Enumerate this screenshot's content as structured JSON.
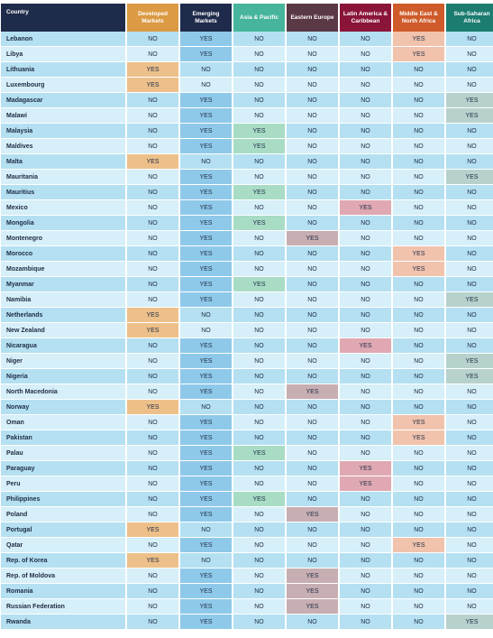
{
  "columns": [
    {
      "key": "country",
      "label": "Country",
      "color": "#1f2b4a"
    },
    {
      "key": "developed",
      "label": "Developed Markets",
      "color": "#db9a43",
      "highlight": "#edc08a"
    },
    {
      "key": "emerging",
      "label": "Emerging Markets",
      "color": "#1f2b4a",
      "highlight": "#8fc9ea"
    },
    {
      "key": "asia",
      "label": "Asia & Pacific",
      "color": "#46b59b",
      "highlight": "#a8dcc5"
    },
    {
      "key": "eastern",
      "label": "Eastern Europe",
      "color": "#5b3845",
      "highlight": "#c7aeb2"
    },
    {
      "key": "latam",
      "label": "Latin America & Caribbean",
      "color": "#8a1538",
      "highlight": "#dfa8b2"
    },
    {
      "key": "mena",
      "label": "Middle East & North Africa",
      "color": "#cf5b2a",
      "highlight": "#f1c3ac"
    },
    {
      "key": "ssa",
      "label": "Sub-Saharan Africa",
      "color": "#1b7c6f",
      "highlight": "#b7d2cc"
    }
  ],
  "rows": [
    {
      "country": "Lebanon",
      "developed": "NO",
      "emerging": "YES",
      "asia": "NO",
      "eastern": "NO",
      "latam": "NO",
      "mena": "YES",
      "ssa": "NO"
    },
    {
      "country": "Libya",
      "developed": "NO",
      "emerging": "YES",
      "asia": "NO",
      "eastern": "NO",
      "latam": "NO",
      "mena": "YES",
      "ssa": "NO"
    },
    {
      "country": "Lithuania",
      "developed": "YES",
      "emerging": "NO",
      "asia": "NO",
      "eastern": "NO",
      "latam": "NO",
      "mena": "NO",
      "ssa": "NO"
    },
    {
      "country": "Luxembourg",
      "developed": "YES",
      "emerging": "NO",
      "asia": "NO",
      "eastern": "NO",
      "latam": "NO",
      "mena": "NO",
      "ssa": "NO"
    },
    {
      "country": "Madagascar",
      "developed": "NO",
      "emerging": "YES",
      "asia": "NO",
      "eastern": "NO",
      "latam": "NO",
      "mena": "NO",
      "ssa": "YES"
    },
    {
      "country": "Malawi",
      "developed": "NO",
      "emerging": "YES",
      "asia": "NO",
      "eastern": "NO",
      "latam": "NO",
      "mena": "NO",
      "ssa": "YES"
    },
    {
      "country": "Malaysia",
      "developed": "NO",
      "emerging": "YES",
      "asia": "YES",
      "eastern": "NO",
      "latam": "NO",
      "mena": "NO",
      "ssa": "NO"
    },
    {
      "country": "Maldives",
      "developed": "NO",
      "emerging": "YES",
      "asia": "YES",
      "eastern": "NO",
      "latam": "NO",
      "mena": "NO",
      "ssa": "NO"
    },
    {
      "country": "Malta",
      "developed": "YES",
      "emerging": "NO",
      "asia": "NO",
      "eastern": "NO",
      "latam": "NO",
      "mena": "NO",
      "ssa": "NO"
    },
    {
      "country": "Mauritania",
      "developed": "NO",
      "emerging": "YES",
      "asia": "NO",
      "eastern": "NO",
      "latam": "NO",
      "mena": "NO",
      "ssa": "YES"
    },
    {
      "country": "Mauritius",
      "developed": "NO",
      "emerging": "YES",
      "asia": "YES",
      "eastern": "NO",
      "latam": "NO",
      "mena": "NO",
      "ssa": "NO"
    },
    {
      "country": "Mexico",
      "developed": "NO",
      "emerging": "YES",
      "asia": "NO",
      "eastern": "NO",
      "latam": "YES",
      "mena": "NO",
      "ssa": "NO"
    },
    {
      "country": "Mongolia",
      "developed": "NO",
      "emerging": "YES",
      "asia": "YES",
      "eastern": "NO",
      "latam": "NO",
      "mena": "NO",
      "ssa": "NO"
    },
    {
      "country": "Montenegro",
      "developed": "NO",
      "emerging": "YES",
      "asia": "NO",
      "eastern": "YES",
      "latam": "NO",
      "mena": "NO",
      "ssa": "NO"
    },
    {
      "country": "Morocco",
      "developed": "NO",
      "emerging": "YES",
      "asia": "NO",
      "eastern": "NO",
      "latam": "NO",
      "mena": "YES",
      "ssa": "NO"
    },
    {
      "country": "Mozambique",
      "developed": "NO",
      "emerging": "YES",
      "asia": "NO",
      "eastern": "NO",
      "latam": "NO",
      "mena": "YES",
      "ssa": "NO"
    },
    {
      "country": "Myanmar",
      "developed": "NO",
      "emerging": "YES",
      "asia": "YES",
      "eastern": "NO",
      "latam": "NO",
      "mena": "NO",
      "ssa": "NO"
    },
    {
      "country": "Namibia",
      "developed": "NO",
      "emerging": "YES",
      "asia": "NO",
      "eastern": "NO",
      "latam": "NO",
      "mena": "NO",
      "ssa": "YES"
    },
    {
      "country": "Netherlands",
      "developed": "YES",
      "emerging": "NO",
      "asia": "NO",
      "eastern": "NO",
      "latam": "NO",
      "mena": "NO",
      "ssa": "NO"
    },
    {
      "country": "New Zealand",
      "developed": "YES",
      "emerging": "NO",
      "asia": "NO",
      "eastern": "NO",
      "latam": "NO",
      "mena": "NO",
      "ssa": "NO"
    },
    {
      "country": "Nicaragua",
      "developed": "NO",
      "emerging": "YES",
      "asia": "NO",
      "eastern": "NO",
      "latam": "YES",
      "mena": "NO",
      "ssa": "NO"
    },
    {
      "country": "Niger",
      "developed": "NO",
      "emerging": "YES",
      "asia": "NO",
      "eastern": "NO",
      "latam": "NO",
      "mena": "NO",
      "ssa": "YES"
    },
    {
      "country": "Nigeria",
      "developed": "NO",
      "emerging": "YES",
      "asia": "NO",
      "eastern": "NO",
      "latam": "NO",
      "mena": "NO",
      "ssa": "YES"
    },
    {
      "country": "North Macedonia",
      "developed": "NO",
      "emerging": "YES",
      "asia": "NO",
      "eastern": "YES",
      "latam": "NO",
      "mena": "NO",
      "ssa": "NO"
    },
    {
      "country": "Norway",
      "developed": "YES",
      "emerging": "NO",
      "asia": "NO",
      "eastern": "NO",
      "latam": "NO",
      "mena": "NO",
      "ssa": "NO"
    },
    {
      "country": "Oman",
      "developed": "NO",
      "emerging": "YES",
      "asia": "NO",
      "eastern": "NO",
      "latam": "NO",
      "mena": "YES",
      "ssa": "NO"
    },
    {
      "country": "Pakistan",
      "developed": "NO",
      "emerging": "YES",
      "asia": "NO",
      "eastern": "NO",
      "latam": "NO",
      "mena": "YES",
      "ssa": "NO"
    },
    {
      "country": "Palau",
      "developed": "NO",
      "emerging": "YES",
      "asia": "YES",
      "eastern": "NO",
      "latam": "NO",
      "mena": "NO",
      "ssa": "NO"
    },
    {
      "country": "Paraguay",
      "developed": "NO",
      "emerging": "YES",
      "asia": "NO",
      "eastern": "NO",
      "latam": "YES",
      "mena": "NO",
      "ssa": "NO"
    },
    {
      "country": "Peru",
      "developed": "NO",
      "emerging": "YES",
      "asia": "NO",
      "eastern": "NO",
      "latam": "YES",
      "mena": "NO",
      "ssa": "NO"
    },
    {
      "country": "Philippines",
      "developed": "NO",
      "emerging": "YES",
      "asia": "YES",
      "eastern": "NO",
      "latam": "NO",
      "mena": "NO",
      "ssa": "NO"
    },
    {
      "country": "Poland",
      "developed": "NO",
      "emerging": "YES",
      "asia": "NO",
      "eastern": "YES",
      "latam": "NO",
      "mena": "NO",
      "ssa": "NO"
    },
    {
      "country": "Portugal",
      "developed": "YES",
      "emerging": "NO",
      "asia": "NO",
      "eastern": "NO",
      "latam": "NO",
      "mena": "NO",
      "ssa": "NO"
    },
    {
      "country": "Qatar",
      "developed": "NO",
      "emerging": "YES",
      "asia": "NO",
      "eastern": "NO",
      "latam": "NO",
      "mena": "YES",
      "ssa": "NO"
    },
    {
      "country": "Rep. of Korea",
      "developed": "YES",
      "emerging": "NO",
      "asia": "NO",
      "eastern": "NO",
      "latam": "NO",
      "mena": "NO",
      "ssa": "NO"
    },
    {
      "country": "Rep. of Moldova",
      "developed": "NO",
      "emerging": "YES",
      "asia": "NO",
      "eastern": "YES",
      "latam": "NO",
      "mena": "NO",
      "ssa": "NO"
    },
    {
      "country": "Romania",
      "developed": "NO",
      "emerging": "YES",
      "asia": "NO",
      "eastern": "YES",
      "latam": "NO",
      "mena": "NO",
      "ssa": "NO"
    },
    {
      "country": "Russian Federation",
      "developed": "NO",
      "emerging": "YES",
      "asia": "NO",
      "eastern": "YES",
      "latam": "NO",
      "mena": "NO",
      "ssa": "NO"
    },
    {
      "country": "Rwanda",
      "developed": "NO",
      "emerging": "YES",
      "asia": "NO",
      "eastern": "NO",
      "latam": "NO",
      "mena": "NO",
      "ssa": "YES"
    }
  ]
}
